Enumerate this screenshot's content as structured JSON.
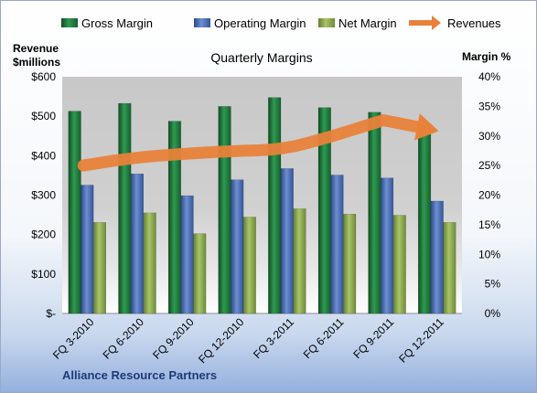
{
  "chart_data": {
    "type": "bar",
    "title": "Quarterly Margins",
    "categories": [
      "FQ 3-2010",
      "FQ 6-2010",
      "FQ 9-2010",
      "FQ 12-2010",
      "FQ 3-2011",
      "FQ 6-2011",
      "FQ 9-2011",
      "FQ 12-2011"
    ],
    "series": [
      {
        "name": "Gross Margin",
        "axis": "right",
        "values": [
          34.2,
          35.5,
          32.5,
          35.0,
          36.5,
          34.8,
          34.0,
          31.0
        ]
      },
      {
        "name": "Operating Margin",
        "axis": "right",
        "values": [
          21.7,
          23.6,
          19.9,
          22.6,
          24.5,
          23.4,
          22.9,
          19.0
        ]
      },
      {
        "name": "Net Margin",
        "axis": "right",
        "values": [
          15.4,
          17.0,
          13.5,
          16.3,
          17.7,
          16.8,
          16.6,
          15.4
        ]
      },
      {
        "name": "Revenues",
        "axis": "left",
        "type": "line",
        "values": [
          375,
          395,
          405,
          412,
          415,
          450,
          490,
          465
        ]
      }
    ],
    "y_left": {
      "label_line1": "Revenue",
      "label_line2": "$millions",
      "ticks": [
        "$-",
        "$100",
        "$200",
        "$300",
        "$400",
        "$500",
        "$600"
      ],
      "range": [
        0,
        600
      ]
    },
    "y_right": {
      "label": "Margin %",
      "ticks": [
        "0%",
        "5%",
        "10%",
        "15%",
        "20%",
        "25%",
        "30%",
        "35%",
        "40%"
      ],
      "range": [
        0,
        40
      ]
    },
    "legend_position": "top",
    "grid": false,
    "company": "Alliance Resource Partners",
    "colors": {
      "gross": "#1f7a3c",
      "operating": "#4a6db5",
      "net": "#8fae52",
      "revenues": "#e8823a"
    }
  }
}
